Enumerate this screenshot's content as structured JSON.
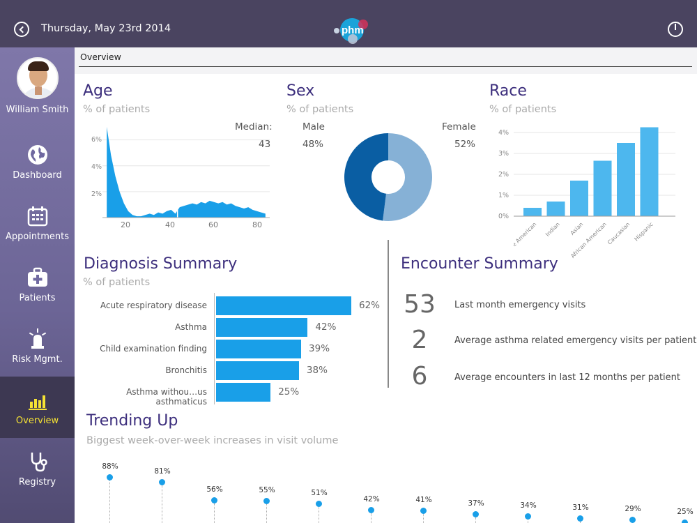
{
  "header": {
    "date": "Thursday, May  23rd 2014",
    "logo_text": "phm"
  },
  "sidebar": {
    "user_name": "William Smith",
    "items": [
      {
        "label": "Dashboard",
        "icon": "globe-icon"
      },
      {
        "label": "Appointments",
        "icon": "calendar-icon"
      },
      {
        "label": "Patients",
        "icon": "medical-kit-icon"
      },
      {
        "label": "Risk Mgmt.",
        "icon": "alarm-light-icon"
      },
      {
        "label": "Overview",
        "icon": "bar-chart-icon",
        "active": true
      },
      {
        "label": "Registry",
        "icon": "stethoscope-icon"
      }
    ]
  },
  "breadcrumb": "Overview",
  "age": {
    "title": "Age",
    "subtitle": "% of patients",
    "median_label": "Median:",
    "median_value": "43",
    "y_ticks": [
      "6%",
      "4%",
      "2%"
    ],
    "x_ticks": [
      "20",
      "40",
      "60",
      "80"
    ]
  },
  "sex": {
    "title": "Sex",
    "subtitle": "% of patients",
    "male_label": "Male",
    "male_value": "48%",
    "female_label": "Female",
    "female_value": "52%"
  },
  "race": {
    "title": "Race",
    "subtitle": "% of patients",
    "y_ticks": [
      "4%",
      "3%",
      "2%",
      "1%",
      "0%"
    ]
  },
  "diagnosis": {
    "title": "Diagnosis Summary",
    "subtitle": "% of patients",
    "rows": [
      {
        "label": "Acute respiratory disease",
        "value": "62%"
      },
      {
        "label": "Asthma",
        "value": "42%"
      },
      {
        "label": "Child examination finding",
        "value": "39%"
      },
      {
        "label": "Bronchitis",
        "value": "38%"
      },
      {
        "label": "Asthma withou…us asthmaticus",
        "value": "25%"
      }
    ]
  },
  "encounter": {
    "title": "Encounter Summary",
    "rows": [
      {
        "number": "53",
        "text": "Last month emergency visits"
      },
      {
        "number": "2",
        "text": "Average asthma related emergency visits per patient"
      },
      {
        "number": "6",
        "text": "Average encounters in last 12 months per patient"
      }
    ]
  },
  "trending": {
    "title": "Trending Up",
    "subtitle": "Biggest week-over-week increases in visit volume",
    "values": [
      "88%",
      "81%",
      "56%",
      "55%",
      "51%",
      "42%",
      "41%",
      "37%",
      "34%",
      "31%",
      "29%",
      "25%"
    ]
  },
  "colors": {
    "accent": "#199fe8",
    "title": "#3d2f7d",
    "sidebar_active_text": "#f5e234",
    "male": "#0a5ea3",
    "female": "#86b1d6"
  },
  "chart_data": [
    {
      "type": "area",
      "title": "Age",
      "xlabel": "",
      "ylabel": "% of patients",
      "x": [
        10,
        12,
        14,
        16,
        18,
        20,
        22,
        24,
        26,
        28,
        30,
        32,
        34,
        36,
        38,
        40,
        42,
        44,
        46,
        48,
        50,
        52,
        54,
        56,
        58,
        60,
        62,
        64,
        66,
        68,
        70,
        72,
        74,
        76,
        78,
        80,
        82,
        84
      ],
      "values": [
        7.0,
        4.8,
        3.2,
        2.0,
        1.1,
        0.5,
        0.2,
        0.1,
        0.1,
        0.2,
        0.3,
        0.2,
        0.4,
        0.3,
        0.5,
        0.6,
        0.3,
        0.8,
        0.9,
        1.0,
        1.1,
        1.0,
        1.2,
        1.1,
        1.3,
        1.2,
        1.1,
        1.2,
        1.0,
        1.1,
        0.9,
        0.8,
        0.7,
        0.8,
        0.6,
        0.5,
        0.4,
        0.3
      ],
      "xlim": [
        8,
        86
      ],
      "ylim": [
        0,
        7
      ],
      "x_ticks": [
        20,
        40,
        60,
        80
      ],
      "y_ticks": [
        2,
        4,
        6
      ],
      "median": 43
    },
    {
      "type": "pie",
      "title": "Sex",
      "categories": [
        "Male",
        "Female"
      ],
      "values": [
        48,
        52
      ]
    },
    {
      "type": "bar",
      "title": "Race",
      "ylabel": "% of patients",
      "categories": [
        "Native American",
        "Indian",
        "Asian",
        "African American",
        "Caucasian",
        "Hispanic"
      ],
      "values": [
        0.4,
        0.7,
        1.7,
        2.65,
        3.5,
        4.25
      ],
      "ylim": [
        0,
        4.5
      ]
    },
    {
      "type": "bar",
      "title": "Diagnosis Summary",
      "categories": [
        "Acute respiratory disease",
        "Asthma",
        "Child examination finding",
        "Bronchitis",
        "Asthma withou…us asthmaticus"
      ],
      "values": [
        62,
        42,
        39,
        38,
        25
      ]
    },
    {
      "type": "scatter",
      "title": "Trending Up",
      "values": [
        88,
        81,
        56,
        55,
        51,
        42,
        41,
        37,
        34,
        31,
        29,
        25
      ]
    }
  ]
}
